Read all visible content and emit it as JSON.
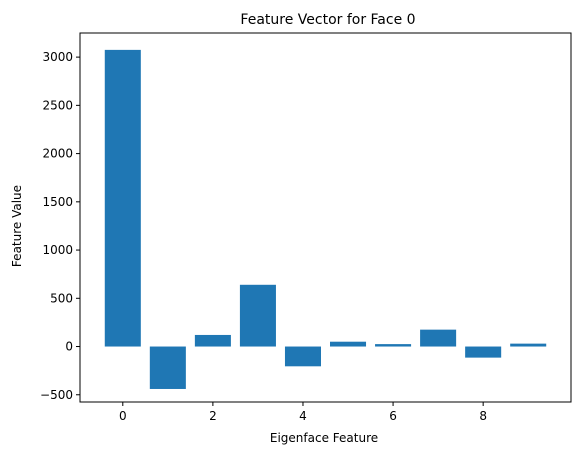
{
  "chart_data": {
    "type": "bar",
    "title": "Feature Vector for Face 0",
    "xlabel": "Eigenface Feature",
    "ylabel": "Feature Value",
    "categories": [
      0,
      1,
      2,
      3,
      4,
      5,
      6,
      7,
      8,
      9
    ],
    "values": [
      3075,
      -440,
      120,
      640,
      -205,
      50,
      25,
      175,
      -115,
      30
    ],
    "bar_color": "#1f77b4",
    "xlim": [
      -0.95,
      9.95
    ],
    "ylim": [
      -575,
      3250
    ],
    "xticks": [
      0,
      2,
      4,
      6,
      8
    ],
    "yticks": [
      -500,
      0,
      500,
      1000,
      1500,
      2000,
      2500,
      3000
    ],
    "grid": false,
    "legend": false
  }
}
